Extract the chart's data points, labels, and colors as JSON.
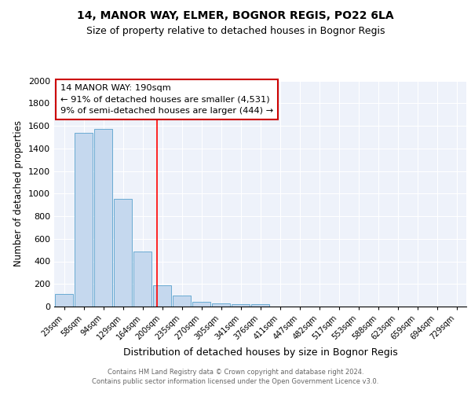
{
  "title1": "14, MANOR WAY, ELMER, BOGNOR REGIS, PO22 6LA",
  "title2": "Size of property relative to detached houses in Bognor Regis",
  "xlabel": "Distribution of detached houses by size in Bognor Regis",
  "ylabel": "Number of detached properties",
  "categories": [
    "23sqm",
    "58sqm",
    "94sqm",
    "129sqm",
    "164sqm",
    "200sqm",
    "235sqm",
    "270sqm",
    "305sqm",
    "341sqm",
    "376sqm",
    "411sqm",
    "447sqm",
    "482sqm",
    "517sqm",
    "553sqm",
    "588sqm",
    "623sqm",
    "659sqm",
    "694sqm",
    "729sqm"
  ],
  "values": [
    110,
    1540,
    1570,
    950,
    490,
    190,
    100,
    40,
    28,
    18,
    18,
    0,
    0,
    0,
    0,
    0,
    0,
    0,
    0,
    0,
    0
  ],
  "bar_color": "#c5d8ee",
  "bar_edge_color": "#6aabd2",
  "annotation_line1": "14 MANOR WAY: 190sqm",
  "annotation_line2": "← 91% of detached houses are smaller (4,531)",
  "annotation_line3": "9% of semi-detached houses are larger (444) →",
  "annotation_box_color": "#ffffff",
  "annotation_box_edge": "#cc0000",
  "vline_bin": 4.72,
  "footer1": "Contains HM Land Registry data © Crown copyright and database right 2024.",
  "footer2": "Contains public sector information licensed under the Open Government Licence v3.0.",
  "ylim": [
    0,
    2000
  ],
  "yticks": [
    0,
    200,
    400,
    600,
    800,
    1000,
    1200,
    1400,
    1600,
    1800,
    2000
  ],
  "bg_color": "#eef2fa",
  "grid_color": "#ffffff",
  "title_fontsize": 10,
  "subtitle_fontsize": 9
}
